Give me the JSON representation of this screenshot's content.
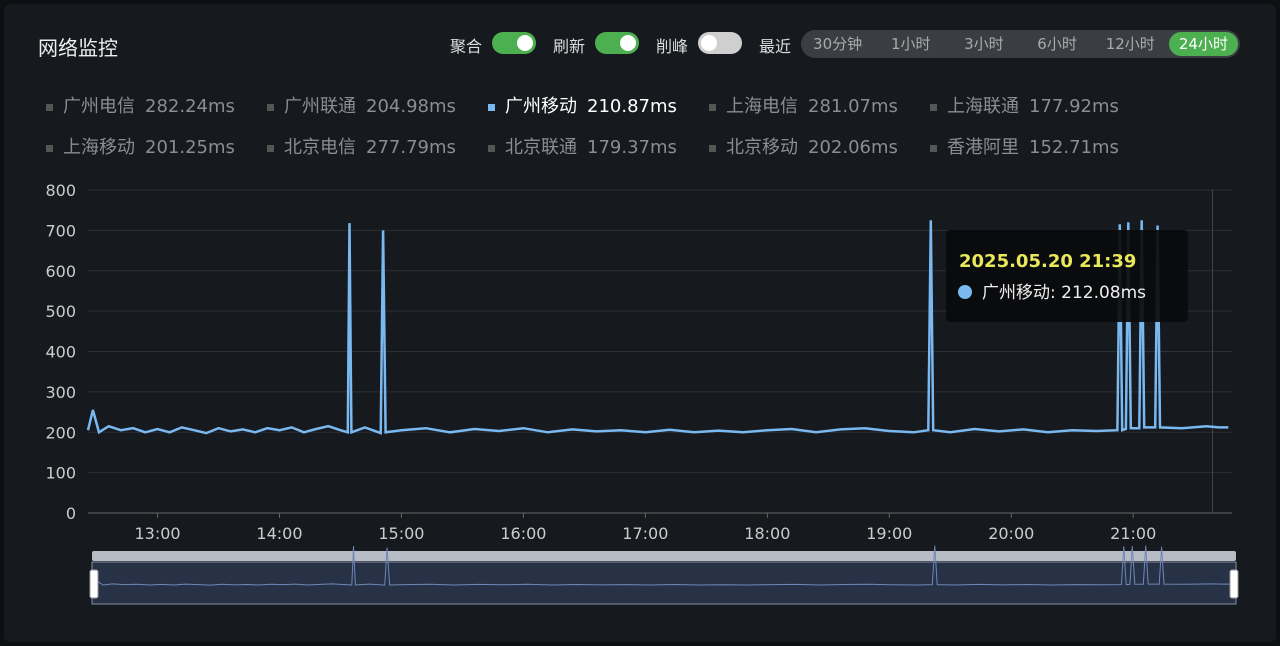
{
  "header": {
    "title": "网络监控",
    "toggles": [
      {
        "label": "聚合",
        "on": true
      },
      {
        "label": "刷新",
        "on": true
      },
      {
        "label": "削峰",
        "on": false
      }
    ],
    "range_label": "最近",
    "ranges": [
      "30分钟",
      "1小时",
      "3小时",
      "6小时",
      "12小时",
      "24小时"
    ],
    "active_range": 5
  },
  "legend": {
    "names": [
      "广州电信",
      "广州联通",
      "广州移动",
      "上海电信",
      "上海联通",
      "上海移动",
      "北京电信",
      "北京联通",
      "北京移动",
      "香港阿里"
    ],
    "values": [
      282.24,
      204.98,
      210.87,
      281.07,
      177.92,
      201.25,
      277.79,
      179.37,
      202.06,
      152.71
    ],
    "value_labels": [
      "282.24ms",
      "204.98ms",
      "210.87ms",
      "281.07ms",
      "177.92ms",
      "201.25ms",
      "277.79ms",
      "179.37ms",
      "202.06ms",
      "152.71ms"
    ],
    "active": 2
  },
  "chart_data": {
    "type": "line",
    "x": [
      12.43,
      12.47,
      12.52,
      12.6,
      12.7,
      12.8,
      12.9,
      13.0,
      13.1,
      13.2,
      13.3,
      13.4,
      13.5,
      13.6,
      13.7,
      13.8,
      13.9,
      14.0,
      14.1,
      14.2,
      14.3,
      14.4,
      14.5,
      14.56,
      14.574,
      14.59,
      14.7,
      14.83,
      14.85,
      14.87,
      15.0,
      15.2,
      15.4,
      15.6,
      15.8,
      16.0,
      16.2,
      16.4,
      16.6,
      16.8,
      17.0,
      17.2,
      17.4,
      17.6,
      17.8,
      18.0,
      18.2,
      18.4,
      18.6,
      18.8,
      19.0,
      19.2,
      19.32,
      19.34,
      19.36,
      19.5,
      19.7,
      19.9,
      20.1,
      20.3,
      20.5,
      20.7,
      20.87,
      20.89,
      20.91,
      20.94,
      20.96,
      20.98,
      21.05,
      21.07,
      21.09,
      21.18,
      21.2,
      21.22,
      21.4,
      21.6,
      21.7,
      21.78
    ],
    "series": [
      {
        "name": "广州移动",
        "color": "#7ab8f0",
        "values": [
          205,
          255,
          200,
          215,
          205,
          210,
          200,
          208,
          200,
          212,
          205,
          198,
          210,
          202,
          207,
          200,
          210,
          205,
          212,
          200,
          208,
          215,
          205,
          200,
          718,
          200,
          212,
          198,
          700,
          200,
          205,
          210,
          200,
          208,
          203,
          210,
          200,
          207,
          202,
          205,
          200,
          206,
          200,
          204,
          200,
          205,
          208,
          200,
          207,
          210,
          203,
          200,
          205,
          725,
          205,
          200,
          208,
          202,
          207,
          200,
          205,
          203,
          205,
          715,
          205,
          208,
          720,
          210,
          210,
          725,
          212,
          212,
          712,
          212,
          210,
          215,
          212,
          212
        ]
      }
    ],
    "xlim": [
      12.43,
      21.81
    ],
    "xticks": [
      {
        "value": 13,
        "label": "13:00"
      },
      {
        "value": 14,
        "label": "14:00"
      },
      {
        "value": 15,
        "label": "15:00"
      },
      {
        "value": 16,
        "label": "16:00"
      },
      {
        "value": 17,
        "label": "17:00"
      },
      {
        "value": 18,
        "label": "18:00"
      },
      {
        "value": 19,
        "label": "19:00"
      },
      {
        "value": 20,
        "label": "20:00"
      },
      {
        "value": 21,
        "label": "21:00"
      }
    ],
    "ylim": [
      0,
      800
    ],
    "yticks": [
      0,
      100,
      200,
      300,
      400,
      500,
      600,
      700,
      800
    ],
    "grid": true,
    "tooltip": {
      "title": "2025.05.20 21:39",
      "label": "广州移动: 212.08ms"
    }
  }
}
